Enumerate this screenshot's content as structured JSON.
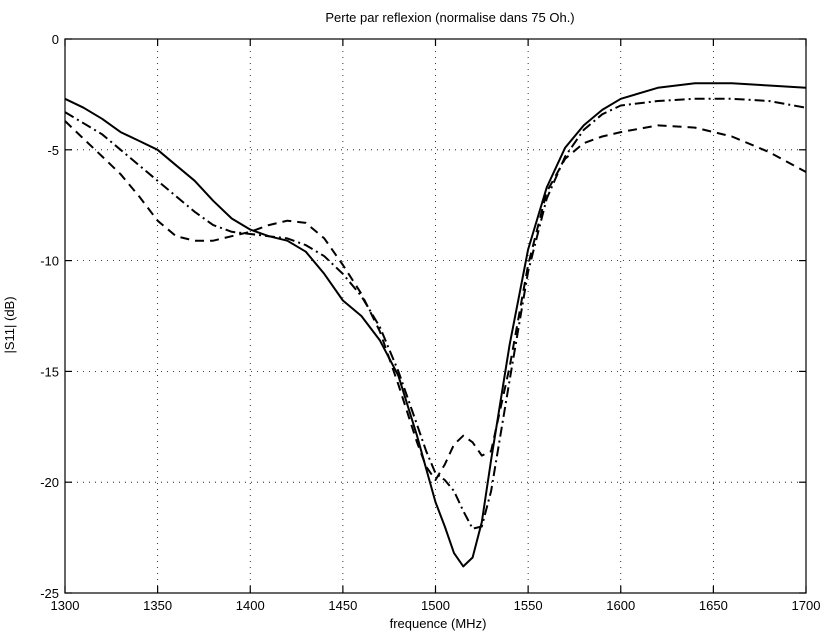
{
  "chart_data": {
    "type": "line",
    "title": "Perte par reflexion (normalise dans 75 Oh.)",
    "xlabel": "frequence  (MHz)",
    "ylabel": "|S11|  (dB)",
    "xlim": [
      1300,
      1700
    ],
    "ylim": [
      -25,
      0
    ],
    "xticks": [
      1300,
      1350,
      1400,
      1450,
      1500,
      1550,
      1600,
      1650,
      1700
    ],
    "yticks": [
      0,
      -5,
      -10,
      -15,
      -20,
      -25
    ],
    "grid": true,
    "series": [
      {
        "style": "solid",
        "x": [
          1300,
          1310,
          1320,
          1330,
          1340,
          1350,
          1360,
          1370,
          1380,
          1390,
          1400,
          1410,
          1420,
          1430,
          1440,
          1450,
          1460,
          1470,
          1480,
          1490,
          1495,
          1500,
          1505,
          1510,
          1515,
          1520,
          1525,
          1530,
          1540,
          1550,
          1560,
          1570,
          1580,
          1590,
          1600,
          1620,
          1640,
          1660,
          1680,
          1700
        ],
        "y": [
          -2.7,
          -3.1,
          -3.6,
          -4.2,
          -4.6,
          -5.0,
          -5.7,
          -6.4,
          -7.3,
          -8.1,
          -8.6,
          -8.9,
          -9.1,
          -9.6,
          -10.6,
          -11.8,
          -12.5,
          -13.6,
          -15.2,
          -17.9,
          -19.4,
          -20.9,
          -22.0,
          -23.2,
          -23.8,
          -23.4,
          -21.8,
          -19.0,
          -13.8,
          -9.5,
          -6.7,
          -4.9,
          -3.9,
          -3.2,
          -2.7,
          -2.2,
          -2.0,
          -2.0,
          -2.1,
          -2.2
        ]
      },
      {
        "style": "dashdot",
        "x": [
          1300,
          1310,
          1320,
          1330,
          1340,
          1350,
          1360,
          1370,
          1380,
          1390,
          1400,
          1410,
          1420,
          1430,
          1440,
          1450,
          1460,
          1470,
          1480,
          1490,
          1495,
          1500,
          1505,
          1510,
          1515,
          1520,
          1525,
          1530,
          1540,
          1550,
          1560,
          1570,
          1580,
          1590,
          1600,
          1620,
          1640,
          1660,
          1680,
          1700
        ],
        "y": [
          -3.3,
          -3.8,
          -4.3,
          -5.0,
          -5.7,
          -6.4,
          -7.1,
          -7.8,
          -8.4,
          -8.7,
          -8.8,
          -8.9,
          -9.0,
          -9.3,
          -9.8,
          -10.6,
          -11.6,
          -13.0,
          -15.0,
          -17.4,
          -18.6,
          -19.6,
          -19.9,
          -20.4,
          -21.3,
          -22.1,
          -22.0,
          -20.4,
          -15.4,
          -10.5,
          -7.2,
          -5.3,
          -4.1,
          -3.4,
          -3.0,
          -2.8,
          -2.7,
          -2.7,
          -2.8,
          -3.1
        ]
      },
      {
        "style": "dashed",
        "x": [
          1300,
          1310,
          1320,
          1330,
          1340,
          1350,
          1360,
          1370,
          1380,
          1390,
          1400,
          1410,
          1420,
          1430,
          1440,
          1450,
          1460,
          1470,
          1480,
          1490,
          1495,
          1500,
          1505,
          1510,
          1515,
          1520,
          1525,
          1530,
          1540,
          1550,
          1560,
          1570,
          1580,
          1590,
          1600,
          1620,
          1640,
          1660,
          1680,
          1700
        ],
        "y": [
          -3.7,
          -4.5,
          -5.3,
          -6.1,
          -7.1,
          -8.2,
          -8.9,
          -9.1,
          -9.1,
          -8.9,
          -8.7,
          -8.4,
          -8.2,
          -8.3,
          -9.0,
          -10.2,
          -11.5,
          -13.2,
          -15.6,
          -18.2,
          -19.3,
          -19.9,
          -19.2,
          -18.3,
          -17.9,
          -18.2,
          -18.8,
          -18.6,
          -14.8,
          -10.2,
          -6.9,
          -5.4,
          -4.7,
          -4.4,
          -4.2,
          -3.9,
          -4.0,
          -4.4,
          -5.1,
          -6.0
        ]
      }
    ]
  }
}
